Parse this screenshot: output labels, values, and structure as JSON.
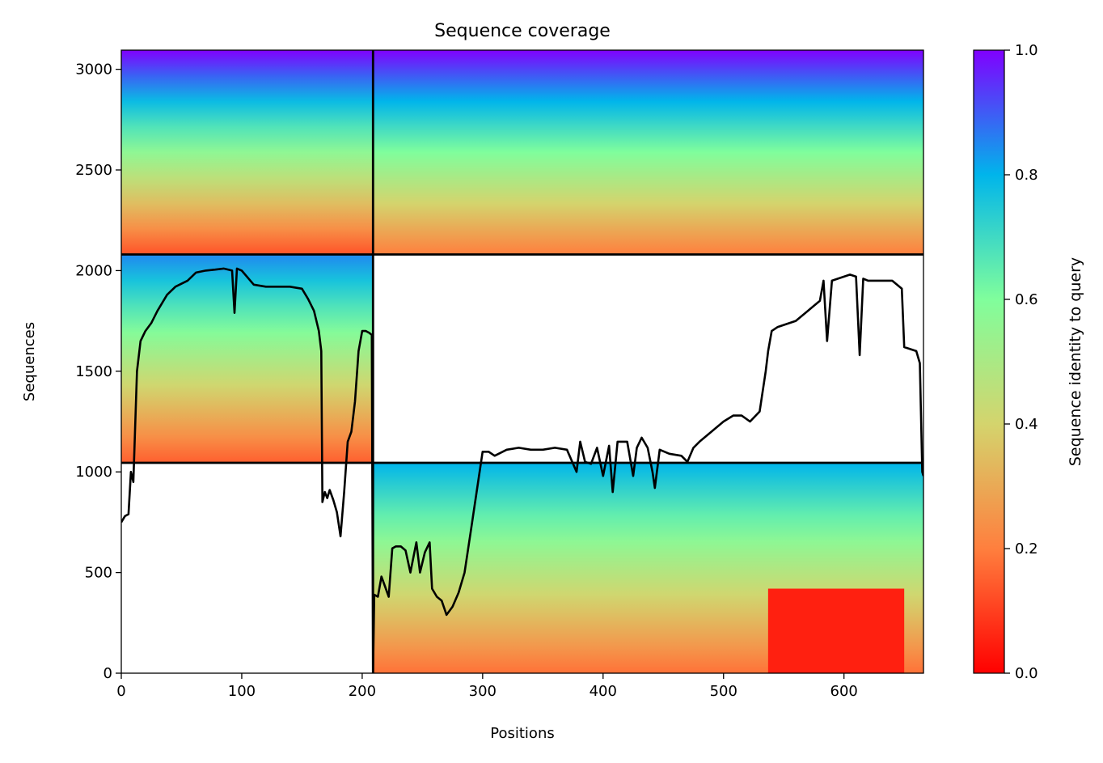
{
  "chart_data": {
    "type": "heatmap",
    "title": "Sequence coverage",
    "xlabel": "Positions",
    "ylabel": "Sequences",
    "xlim": [
      0,
      666
    ],
    "ylim": [
      0,
      3095
    ],
    "x_ticks": [
      0,
      100,
      200,
      300,
      400,
      500,
      600
    ],
    "y_ticks": [
      0,
      500,
      1000,
      1500,
      2000,
      2500,
      3000
    ],
    "colorbar": {
      "label": "Sequence identity to query",
      "range": [
        0,
        1
      ],
      "ticks": [
        "0.0",
        "0.2",
        "0.4",
        "0.6",
        "0.8",
        "1.0"
      ],
      "colormap": "rainbow_r",
      "stops": [
        "#ff0000",
        "#ff7f3e",
        "#d4d46d",
        "#80fe9c",
        "#00b5eb",
        "#8000ff"
      ]
    },
    "domain_boundaries": {
      "x": 209,
      "y": [
        1045,
        2080
      ]
    },
    "blocks": [
      {
        "x": [
          0,
          209
        ],
        "y": [
          2080,
          3095
        ],
        "identity_top": 1.0,
        "identity_bottom": 0.13
      },
      {
        "x": [
          209,
          666
        ],
        "y": [
          2080,
          3095
        ],
        "identity_top": 1.0,
        "identity_bottom": 0.2
      },
      {
        "x": [
          0,
          209
        ],
        "y": [
          1045,
          2080
        ],
        "identity_top": 0.85,
        "identity_bottom": 0.15
      },
      {
        "x": [
          209,
          666
        ],
        "y": [
          0,
          1045
        ],
        "identity_top": 0.8,
        "identity_bottom": 0.18
      },
      {
        "x": [
          537,
          650
        ],
        "y": [
          0,
          420
        ],
        "identity_top": 0.05,
        "identity_bottom": 0.05
      }
    ],
    "series": [
      {
        "type": "line",
        "color": "#000000",
        "x": [
          0,
          3,
          6,
          8,
          10,
          13,
          16,
          20,
          25,
          30,
          38,
          45,
          55,
          62,
          70,
          78,
          85,
          92,
          94,
          96,
          100,
          110,
          120,
          130,
          140,
          150,
          155,
          160,
          164,
          166,
          167,
          169,
          171,
          173,
          176,
          179,
          182,
          185,
          188,
          191,
          194,
          197,
          200,
          203,
          206,
          208,
          209,
          210,
          213,
          216,
          219,
          222,
          225,
          228,
          232,
          236,
          240,
          245,
          248,
          252,
          256,
          258,
          262,
          266,
          270,
          275,
          280,
          285,
          290,
          295,
          300,
          305,
          310,
          320,
          330,
          340,
          350,
          360,
          370,
          378,
          381,
          385,
          390,
          395,
          400,
          405,
          408,
          412,
          420,
          425,
          428,
          432,
          437,
          441,
          443,
          447,
          455,
          465,
          470,
          475,
          480,
          490,
          500,
          508,
          515,
          522,
          530,
          535,
          537,
          540,
          545,
          550,
          560,
          570,
          580,
          583,
          586,
          590,
          595,
          600,
          605,
          610,
          613,
          616,
          620,
          630,
          640,
          648,
          650,
          660,
          663,
          665,
          666
        ],
        "y": [
          750,
          780,
          790,
          1000,
          950,
          1500,
          1650,
          1700,
          1740,
          1800,
          1880,
          1920,
          1950,
          1990,
          2000,
          2005,
          2010,
          2000,
          1790,
          2010,
          2000,
          1930,
          1920,
          1920,
          1920,
          1910,
          1860,
          1800,
          1700,
          1600,
          850,
          900,
          870,
          910,
          860,
          800,
          680,
          900,
          1150,
          1200,
          1350,
          1600,
          1700,
          1700,
          1690,
          1680,
          0,
          390,
          380,
          480,
          430,
          380,
          620,
          630,
          630,
          610,
          500,
          650,
          500,
          600,
          650,
          420,
          380,
          360,
          290,
          330,
          400,
          500,
          700,
          900,
          1100,
          1100,
          1080,
          1110,
          1120,
          1110,
          1110,
          1120,
          1110,
          1000,
          1150,
          1050,
          1040,
          1120,
          980,
          1130,
          900,
          1150,
          1150,
          980,
          1120,
          1170,
          1120,
          1000,
          920,
          1110,
          1090,
          1080,
          1050,
          1120,
          1150,
          1200,
          1250,
          1280,
          1280,
          1250,
          1300,
          1500,
          1600,
          1700,
          1720,
          1730,
          1750,
          1800,
          1850,
          1950,
          1650,
          1950,
          1960,
          1970,
          1980,
          1970,
          1580,
          1960,
          1950,
          1950,
          1950,
          1910,
          1620,
          1600,
          1540,
          1000,
          980
        ]
      }
    ]
  }
}
